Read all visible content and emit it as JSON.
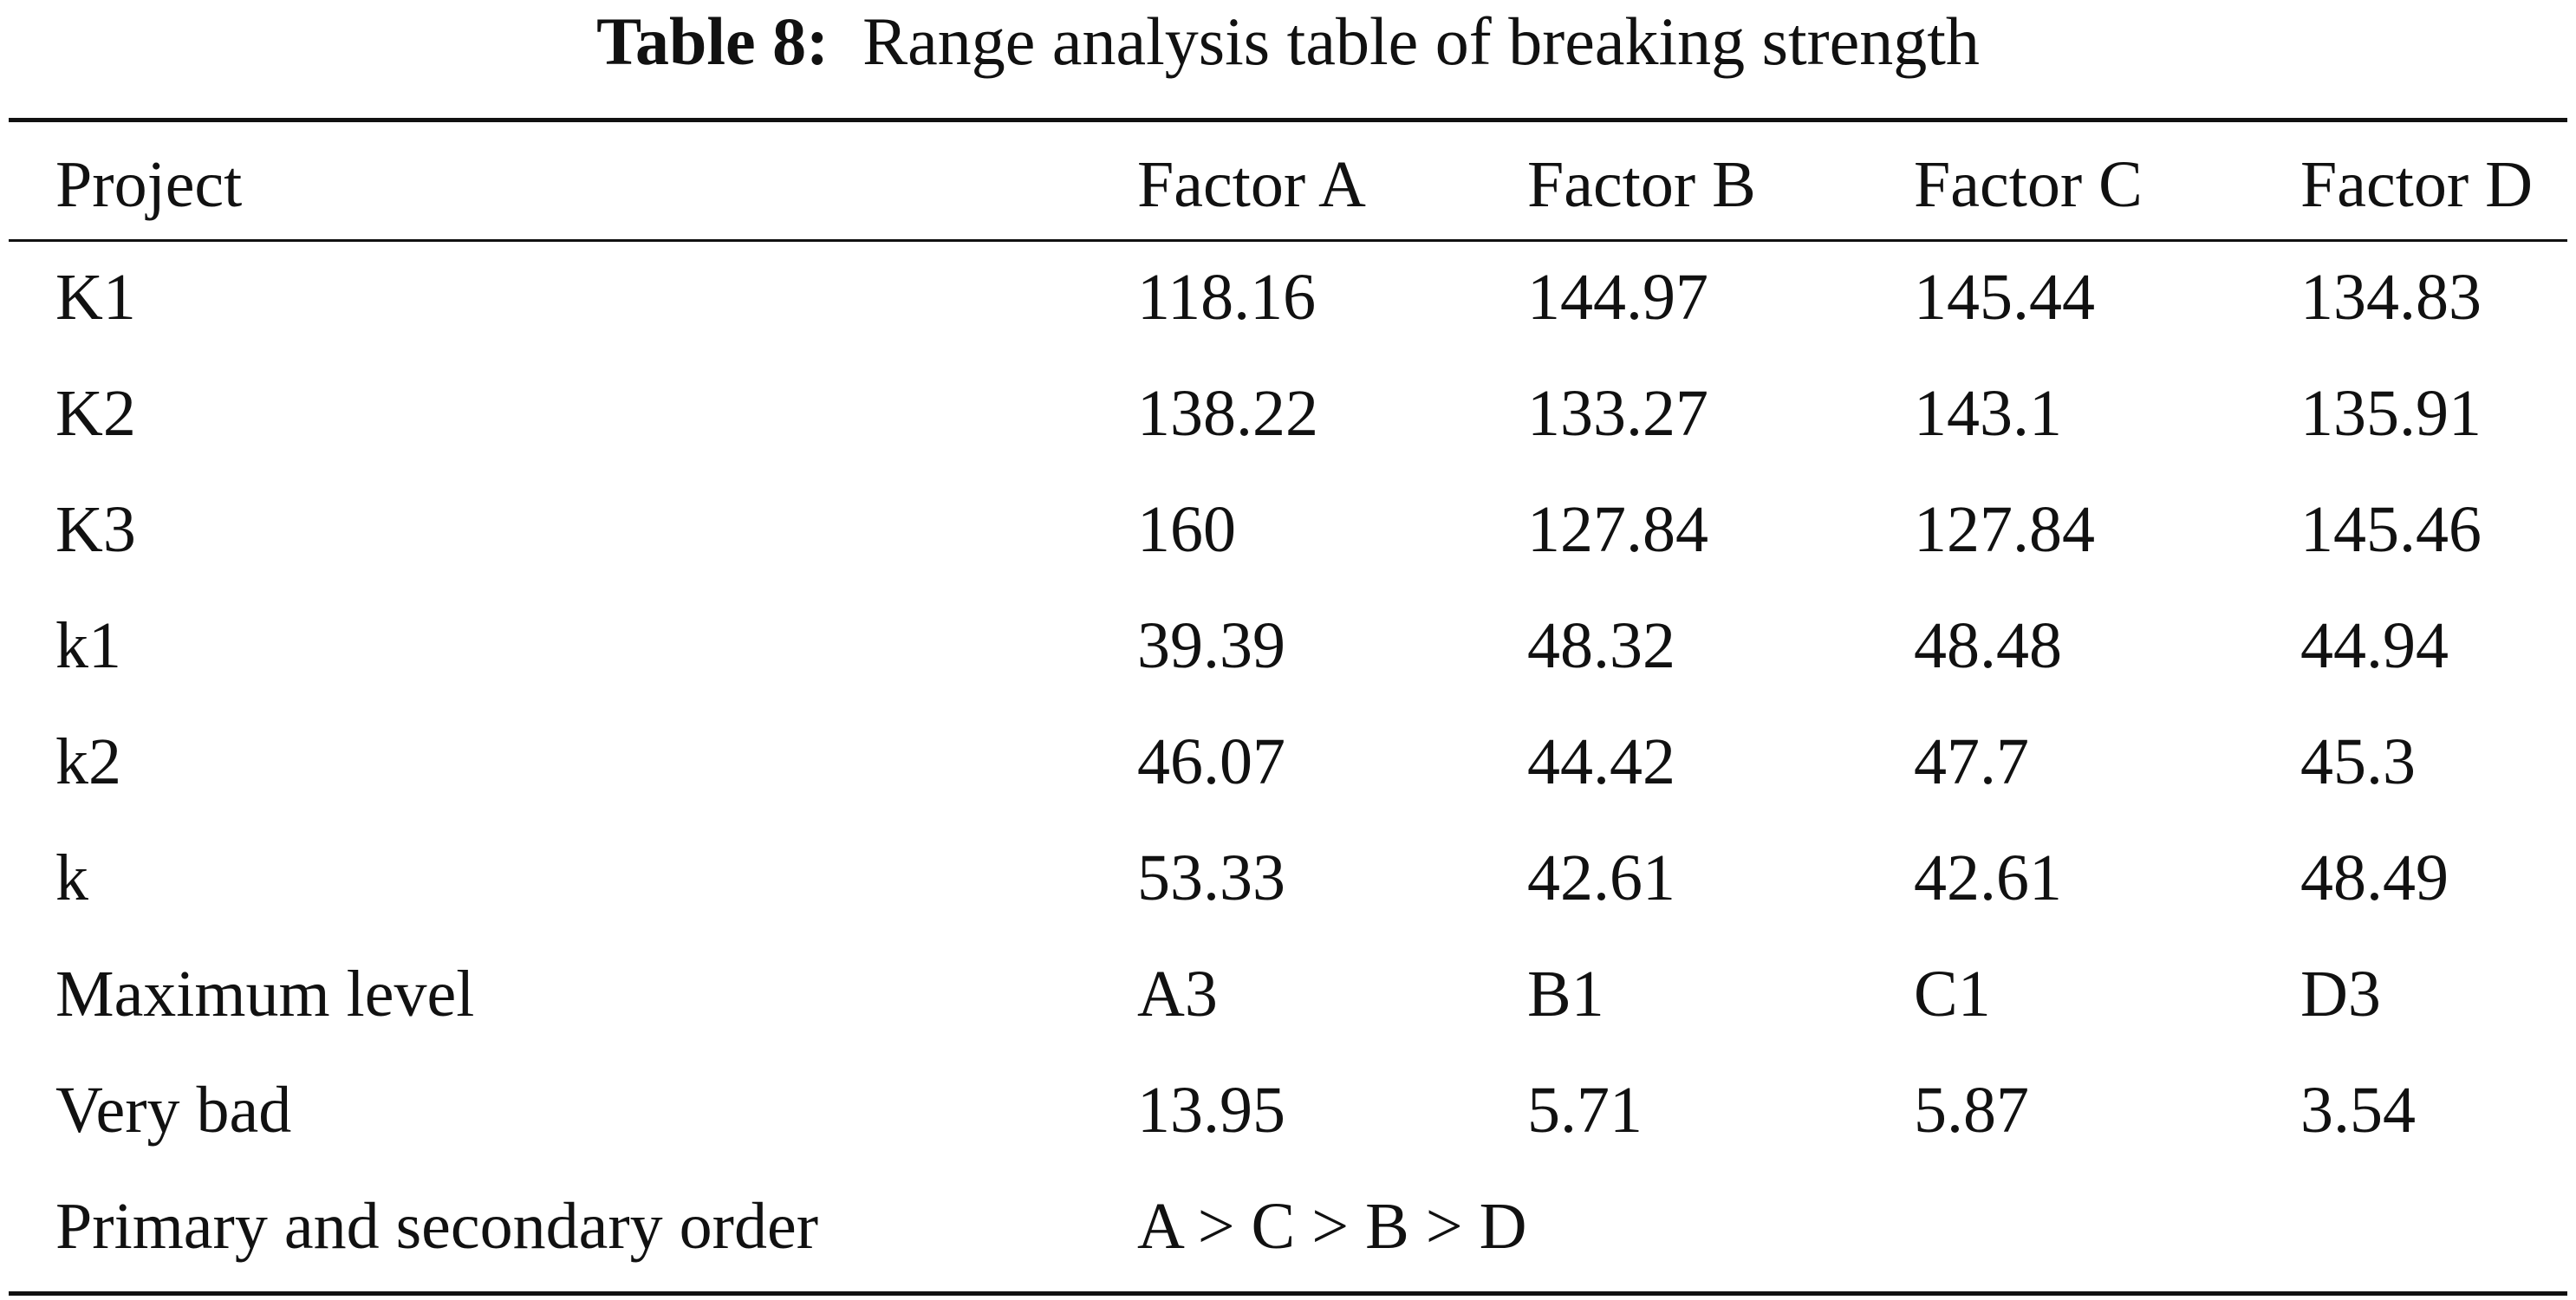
{
  "caption": {
    "label": "Table 8:",
    "title": "Range analysis table of breaking strength"
  },
  "table": {
    "headers": [
      "Project",
      "Factor A",
      "Factor B",
      "Factor C",
      "Factor D"
    ],
    "rows": [
      [
        "K1",
        "118.16",
        "144.97",
        "145.44",
        "134.83"
      ],
      [
        "K2",
        "138.22",
        "133.27",
        "143.1",
        "135.91"
      ],
      [
        "K3",
        "160",
        "127.84",
        "127.84",
        "145.46"
      ],
      [
        "k1",
        "39.39",
        "48.32",
        "48.48",
        "44.94"
      ],
      [
        "k2",
        "46.07",
        "44.42",
        "47.7",
        "45.3"
      ],
      [
        "k",
        "53.33",
        "42.61",
        "42.61",
        "48.49"
      ],
      [
        "Maximum level",
        "A3",
        "B1",
        "C1",
        "D3"
      ],
      [
        "Very bad",
        "13.95",
        "5.71",
        "5.87",
        "3.54"
      ]
    ],
    "order_row": {
      "label": "Primary and secondary order",
      "value": "A > C > B > D"
    }
  }
}
